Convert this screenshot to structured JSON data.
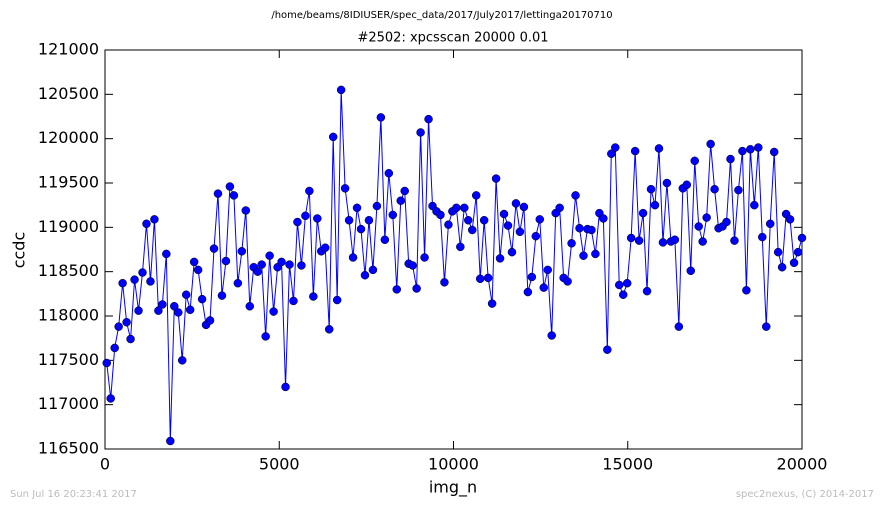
{
  "chart_data": {
    "type": "line",
    "suptitle": "/home/beams/8IDIUSER/spec_data/2017/July2017/lettinga20170710",
    "title": "#2502: xpcsscan 20000 0.01",
    "x_label": "img_n",
    "y_label": "ccdc",
    "footer_left": "Sun Jul 16 20:23:41 2017",
    "footer_right": "spec2nexus, (C) 2014-2017",
    "color": "#0000ff",
    "xlim": [
      0,
      20000
    ],
    "xticks": [
      0,
      5000,
      10000,
      15000,
      20000
    ],
    "ylim": [
      116500,
      121000
    ],
    "yticks": [
      116500,
      117000,
      117500,
      118000,
      118500,
      119000,
      119500,
      120000,
      120500,
      121000
    ],
    "grid": false,
    "x": [
      50,
      164,
      278,
      392,
      506,
      620,
      734,
      848,
      962,
      1076,
      1190,
      1304,
      1418,
      1532,
      1646,
      1760,
      1874,
      1988,
      2102,
      2216,
      2330,
      2444,
      2558,
      2672,
      2786,
      2900,
      3014,
      3128,
      3242,
      3356,
      3470,
      3584,
      3698,
      3812,
      3926,
      4040,
      4154,
      4268,
      4382,
      4496,
      4610,
      4724,
      4838,
      4952,
      5066,
      5180,
      5294,
      5408,
      5522,
      5636,
      5750,
      5864,
      5978,
      6092,
      6206,
      6320,
      6434,
      6548,
      6662,
      6776,
      6890,
      7004,
      7118,
      7232,
      7346,
      7460,
      7574,
      7688,
      7802,
      7916,
      8030,
      8144,
      8258,
      8372,
      8486,
      8600,
      8714,
      8828,
      8942,
      9056,
      9170,
      9284,
      9398,
      9512,
      9626,
      9740,
      9854,
      9968,
      10082,
      10196,
      10310,
      10424,
      10538,
      10652,
      10766,
      10880,
      10994,
      11108,
      11222,
      11336,
      11450,
      11564,
      11678,
      11792,
      11906,
      12020,
      12134,
      12248,
      12362,
      12476,
      12590,
      12704,
      12818,
      12932,
      13046,
      13160,
      13274,
      13388,
      13502,
      13616,
      13730,
      13844,
      13958,
      14072,
      14186,
      14300,
      14414,
      14528,
      14642,
      14756,
      14870,
      14984,
      15098,
      15212,
      15326,
      15440,
      15554,
      15668,
      15782,
      15896,
      16010,
      16124,
      16238,
      16352,
      16466,
      16580,
      16694,
      16808,
      16922,
      17036,
      17150,
      17264,
      17378,
      17492,
      17606,
      17720,
      17834,
      17948,
      18062,
      18176,
      18290,
      18404,
      18518,
      18632,
      18746,
      18860,
      18974,
      19088,
      19202,
      19316,
      19430,
      19544,
      19658,
      19772,
      19886,
      20000
    ],
    "values": [
      117470,
      117070,
      117640,
      117880,
      118370,
      117930,
      117740,
      118410,
      118060,
      118490,
      119040,
      118390,
      119090,
      118060,
      118130,
      118700,
      116590,
      118110,
      118040,
      117500,
      118240,
      118070,
      118610,
      118520,
      118190,
      117900,
      117950,
      118760,
      119380,
      118230,
      118620,
      119460,
      119360,
      118370,
      118730,
      119190,
      118110,
      118550,
      118500,
      118580,
      117770,
      118680,
      118050,
      118550,
      118610,
      117200,
      118580,
      118170,
      119060,
      118570,
      119130,
      119410,
      118220,
      119100,
      118730,
      118770,
      117850,
      120020,
      118180,
      120550,
      119440,
      119080,
      118660,
      119220,
      118980,
      118460,
      119080,
      118520,
      119240,
      120240,
      118860,
      119610,
      119140,
      118300,
      119300,
      119410,
      118590,
      118570,
      118310,
      120070,
      118660,
      120220,
      119240,
      119180,
      119140,
      118380,
      119030,
      119180,
      119220,
      118780,
      119220,
      119080,
      118970,
      119360,
      118420,
      119080,
      118430,
      118140,
      119550,
      118650,
      119150,
      119020,
      118720,
      119270,
      118950,
      119230,
      118270,
      118440,
      118900,
      119090,
      118320,
      118520,
      117780,
      119160,
      119220,
      118430,
      118390,
      118820,
      119360,
      118990,
      118680,
      118980,
      118970,
      118700,
      119160,
      119100,
      117620,
      119830,
      119900,
      118350,
      118240,
      118370,
      118880,
      119860,
      118850,
      119160,
      118280,
      119430,
      119250,
      119890,
      118830,
      119500,
      118840,
      118860,
      117880,
      119440,
      119480,
      118510,
      119750,
      119010,
      118840,
      119110,
      119940,
      119430,
      118990,
      119010,
      119060,
      119770,
      118850,
      119420,
      119860,
      118290,
      119880,
      119250,
      119900,
      118890,
      117880,
      119040,
      119850,
      118720,
      118550,
      119150,
      119090,
      118600,
      118720,
      118880
    ]
  }
}
